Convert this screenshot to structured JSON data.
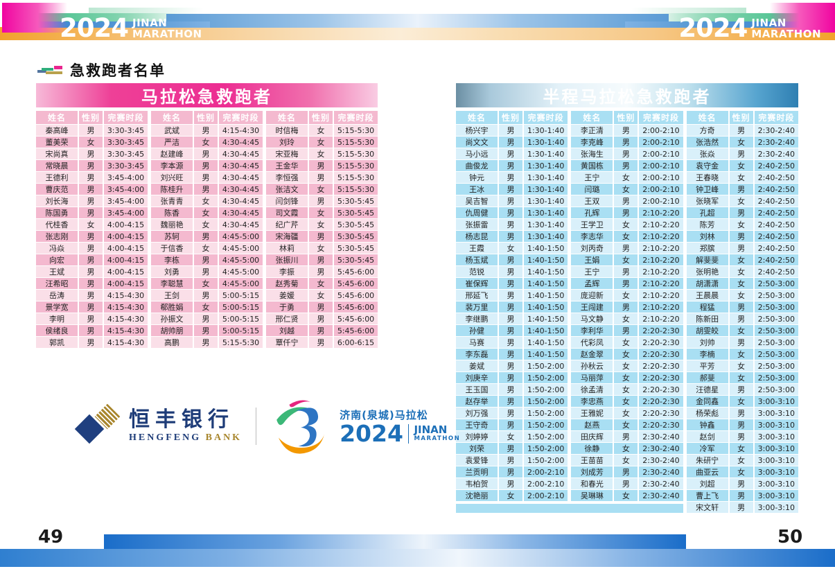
{
  "banner": {
    "year": "2024",
    "title_line1": "JINAN",
    "title_line2": "MARATHON"
  },
  "section": {
    "title": "急救跑者名单"
  },
  "columns": {
    "name": "姓名",
    "gender": "性别",
    "time": "完赛时段"
  },
  "left_page": {
    "page_number": "49",
    "table_title": "马拉松急救跑者",
    "groups": [
      [
        [
          "秦高峰",
          "男",
          "3:30-3:45"
        ],
        [
          "董美荣",
          "女",
          "3:30-3:45"
        ],
        [
          "宋尚真",
          "男",
          "3:30-3:45"
        ],
        [
          "常晓晨",
          "男",
          "3:30-3:45"
        ],
        [
          "王德利",
          "男",
          "3:45-4:00"
        ],
        [
          "曹庆范",
          "男",
          "3:45-4:00"
        ],
        [
          "刘长海",
          "男",
          "3:45-4:00"
        ],
        [
          "陈国勇",
          "男",
          "3:45-4:00"
        ],
        [
          "代桂香",
          "女",
          "4:00-4:15"
        ],
        [
          "张志刚",
          "男",
          "4:00-4:15"
        ],
        [
          "冯焱",
          "男",
          "4:00-4:15"
        ],
        [
          "向宏",
          "男",
          "4:00-4:15"
        ],
        [
          "王斌",
          "男",
          "4:00-4:15"
        ],
        [
          "汪希昭",
          "男",
          "4:00-4:15"
        ],
        [
          "岳涛",
          "男",
          "4:15-4:30"
        ],
        [
          "景学宽",
          "男",
          "4:15-4:30"
        ],
        [
          "李明",
          "男",
          "4:15-4:30"
        ],
        [
          "侯绪良",
          "男",
          "4:15-4:30"
        ],
        [
          "郭凯",
          "男",
          "4:15-4:30"
        ]
      ],
      [
        [
          "武斌",
          "男",
          "4:15-4:30"
        ],
        [
          "严洁",
          "女",
          "4:30-4:45"
        ],
        [
          "赵建峰",
          "男",
          "4:30-4:45"
        ],
        [
          "李本源",
          "男",
          "4:30-4:45"
        ],
        [
          "刘兴旺",
          "男",
          "4:30-4:45"
        ],
        [
          "陈桂升",
          "男",
          "4:30-4:45"
        ],
        [
          "张青青",
          "女",
          "4:30-4:45"
        ],
        [
          "陈香",
          "女",
          "4:30-4:45"
        ],
        [
          "魏丽艳",
          "女",
          "4:30-4:45"
        ],
        [
          "苏轲",
          "男",
          "4:45-5:00"
        ],
        [
          "于信香",
          "女",
          "4:45-5:00"
        ],
        [
          "李栋",
          "男",
          "4:45-5:00"
        ],
        [
          "刘勇",
          "男",
          "4:45-5:00"
        ],
        [
          "李聪慧",
          "女",
          "4:45-5:00"
        ],
        [
          "王剑",
          "男",
          "5:00-5:15"
        ],
        [
          "郗胜娟",
          "女",
          "5:00-5:15"
        ],
        [
          "孙振文",
          "男",
          "5:00-5:15"
        ],
        [
          "胡帅朋",
          "男",
          "5:00-5:15"
        ],
        [
          "高鹏",
          "男",
          "5:15-5:30"
        ]
      ],
      [
        [
          "时信梅",
          "女",
          "5:15-5:30"
        ],
        [
          "刘玲",
          "女",
          "5:15-5:30"
        ],
        [
          "宋亚梅",
          "女",
          "5:15-5:30"
        ],
        [
          "王金华",
          "男",
          "5:15-5:30"
        ],
        [
          "李恒强",
          "男",
          "5:15-5:30"
        ],
        [
          "张洁文",
          "女",
          "5:15-5:30"
        ],
        [
          "闫剑锋",
          "男",
          "5:30-5:45"
        ],
        [
          "司文霞",
          "女",
          "5:30-5:45"
        ],
        [
          "纪广芹",
          "女",
          "5:30-5:45"
        ],
        [
          "宋海疆",
          "男",
          "5:30-5:45"
        ],
        [
          "林莉",
          "女",
          "5:30-5:45"
        ],
        [
          "张振川",
          "男",
          "5:30-5:45"
        ],
        [
          "李振",
          "男",
          "5:45-6:00"
        ],
        [
          "赵秀菊",
          "女",
          "5:45-6:00"
        ],
        [
          "姜媛",
          "女",
          "5:45-6:00"
        ],
        [
          "于勇",
          "男",
          "5:45-6:00"
        ],
        [
          "邢仁贤",
          "男",
          "5:45-6:00"
        ],
        [
          "刘越",
          "男",
          "5:45-6:00"
        ],
        [
          "覃仟宁",
          "男",
          "6:00-6:15"
        ]
      ]
    ]
  },
  "right_page": {
    "page_number": "50",
    "table_title": "半程马拉松急救跑者",
    "groups": [
      [
        [
          "杨兴宇",
          "男",
          "1:30-1:40"
        ],
        [
          "尚文文",
          "男",
          "1:30-1:40"
        ],
        [
          "马小远",
          "男",
          "1:30-1:40"
        ],
        [
          "曲俊龙",
          "男",
          "1:30-1:40"
        ],
        [
          "钟元",
          "男",
          "1:30-1:40"
        ],
        [
          "王冰",
          "男",
          "1:30-1:40"
        ],
        [
          "吴吉智",
          "男",
          "1:30-1:40"
        ],
        [
          "仇周健",
          "男",
          "1:30-1:40"
        ],
        [
          "张振雷",
          "男",
          "1:30-1:40"
        ],
        [
          "杨志昆",
          "男",
          "1:30-1:40"
        ],
        [
          "王霞",
          "女",
          "1:40-1:50"
        ],
        [
          "杨玉斌",
          "男",
          "1:40-1:50"
        ],
        [
          "范锐",
          "男",
          "1:40-1:50"
        ],
        [
          "崔保辉",
          "男",
          "1:40-1:50"
        ],
        [
          "邢延飞",
          "男",
          "1:40-1:50"
        ],
        [
          "裴万里",
          "男",
          "1:40-1:50"
        ],
        [
          "李继鹏",
          "男",
          "1:40-1:50"
        ],
        [
          "孙健",
          "男",
          "1:40-1:50"
        ],
        [
          "马赛",
          "男",
          "1:40-1:50"
        ],
        [
          "李东磊",
          "男",
          "1:40-1:50"
        ],
        [
          "姜斌",
          "男",
          "1:50-2:00"
        ],
        [
          "刘庚辛",
          "男",
          "1:50-2:00"
        ],
        [
          "王玉国",
          "男",
          "1:50-2:00"
        ],
        [
          "赵存举",
          "男",
          "1:50-2:00"
        ],
        [
          "刘万强",
          "男",
          "1:50-2:00"
        ],
        [
          "王守奇",
          "男",
          "1:50-2:00"
        ],
        [
          "刘婷婷",
          "女",
          "1:50-2:00"
        ],
        [
          "刘荣",
          "男",
          "1:50-2:00"
        ],
        [
          "袁爱锋",
          "男",
          "1:50-2:00"
        ],
        [
          "兰贡明",
          "男",
          "2:00-2:10"
        ],
        [
          "韦柏贺",
          "男",
          "2:00-2:10"
        ],
        [
          "沈艳丽",
          "女",
          "2:00-2:10"
        ]
      ],
      [
        [
          "李正清",
          "男",
          "2:00-2:10"
        ],
        [
          "李克峰",
          "男",
          "2:00-2:10"
        ],
        [
          "张海生",
          "男",
          "2:00-2:10"
        ],
        [
          "黄国栋",
          "男",
          "2:00-2:10"
        ],
        [
          "王宁",
          "女",
          "2:00-2:10"
        ],
        [
          "闫璐",
          "女",
          "2:00-2:10"
        ],
        [
          "王双",
          "男",
          "2:00-2:10"
        ],
        [
          "孔辉",
          "男",
          "2:10-2:20"
        ],
        [
          "王学卫",
          "女",
          "2:10-2:20"
        ],
        [
          "李志华",
          "女",
          "2:10-2:20"
        ],
        [
          "刘丙奇",
          "男",
          "2:10-2:20"
        ],
        [
          "王娟",
          "女",
          "2:10-2:20"
        ],
        [
          "王宁",
          "男",
          "2:10-2:20"
        ],
        [
          "孟辉",
          "男",
          "2:10-2:20"
        ],
        [
          "庞迎新",
          "女",
          "2:10-2:20"
        ],
        [
          "王闯建",
          "男",
          "2:10-2:20"
        ],
        [
          "马文静",
          "女",
          "2:10-2:20"
        ],
        [
          "李利华",
          "男",
          "2:20-2:30"
        ],
        [
          "代彩凤",
          "女",
          "2:20-2:30"
        ],
        [
          "赵金翠",
          "女",
          "2:20-2:30"
        ],
        [
          "孙秋云",
          "女",
          "2:20-2:30"
        ],
        [
          "马丽萍",
          "女",
          "2:20-2:30"
        ],
        [
          "徐孟清",
          "女",
          "2:20-2:30"
        ],
        [
          "李忠燕",
          "女",
          "2:20-2:30"
        ],
        [
          "王雅妮",
          "女",
          "2:20-2:30"
        ],
        [
          "赵燕",
          "女",
          "2:20-2:30"
        ],
        [
          "田庆辉",
          "男",
          "2:30-2:40"
        ],
        [
          "徐静",
          "女",
          "2:30-2:40"
        ],
        [
          "王苗苗",
          "女",
          "2:30-2:40"
        ],
        [
          "刘成芳",
          "男",
          "2:30-2:40"
        ],
        [
          "和春光",
          "男",
          "2:30-2:40"
        ],
        [
          "吴琳琳",
          "女",
          "2:30-2:40"
        ]
      ],
      [
        [
          "方奇",
          "男",
          "2:30-2:40"
        ],
        [
          "张浩然",
          "女",
          "2:30-2:40"
        ],
        [
          "张焱",
          "男",
          "2:30-2:40"
        ],
        [
          "袁守金",
          "女",
          "2:40-2:50"
        ],
        [
          "王春晓",
          "女",
          "2:40-2:50"
        ],
        [
          "钟卫峰",
          "男",
          "2:40-2:50"
        ],
        [
          "张晓军",
          "女",
          "2:40-2:50"
        ],
        [
          "孔超",
          "男",
          "2:40-2:50"
        ],
        [
          "陈芳",
          "女",
          "2:40-2:50"
        ],
        [
          "刘林",
          "男",
          "2:40-2:50"
        ],
        [
          "郑膑",
          "男",
          "2:40-2:50"
        ],
        [
          "解斐斐",
          "女",
          "2:40-2:50"
        ],
        [
          "张明艳",
          "女",
          "2:40-2:50"
        ],
        [
          "胡潇潇",
          "女",
          "2:50-3:00"
        ],
        [
          "王晨晨",
          "女",
          "2:50-3:00"
        ],
        [
          "程猛",
          "男",
          "2:50-3:00"
        ],
        [
          "陈新田",
          "男",
          "2:50-3:00"
        ],
        [
          "胡雯皎",
          "女",
          "2:50-3:00"
        ],
        [
          "刘帅",
          "男",
          "2:50-3:00"
        ],
        [
          "李楠",
          "女",
          "2:50-3:00"
        ],
        [
          "平芳",
          "女",
          "2:50-3:00"
        ],
        [
          "郝斐",
          "女",
          "2:50-3:00"
        ],
        [
          "汪德星",
          "男",
          "2:50-3:00"
        ],
        [
          "金同鑫",
          "女",
          "3:00-3:10"
        ],
        [
          "杨荣彪",
          "男",
          "3:00-3:10"
        ],
        [
          "钟鑫",
          "男",
          "3:00-3:10"
        ],
        [
          "赵剑",
          "男",
          "3:00-3:10"
        ],
        [
          "冷军",
          "女",
          "3:00-3:10"
        ],
        [
          "朱研宁",
          "女",
          "3:00-3:10"
        ],
        [
          "曲亚云",
          "女",
          "3:00-3:10"
        ],
        [
          "刘超",
          "男",
          "3:00-3:10"
        ],
        [
          "曹上飞",
          "男",
          "3:00-3:10"
        ],
        [
          "宋文轩",
          "男",
          "3:00-3:10"
        ]
      ]
    ]
  },
  "sponsors": {
    "bank_cn": "恒丰银行",
    "bank_en": "HENGFENG",
    "bank_en2": "BANK",
    "marathon_cn": "济南(泉城)马拉松",
    "marathon_year": "2024",
    "marathon_en1": "JINAN",
    "marathon_en2": "MARATHON"
  },
  "colors": {
    "pink_accent": "#EC2D92",
    "pink_header": "#EE549E",
    "pink_row_light": "#FADFE8",
    "pink_row_dark": "#F4B9CF",
    "blue_accent": "#1E86C3",
    "blue_row_light": "#D9F0FA",
    "blue_row_dark": "#A9DFF3",
    "footer_blue": "#1A6DC9",
    "banner_magenta": "#F004A0",
    "banner_green": "#2CB77D",
    "banner_blue": "#5B9BD5",
    "banner_orange": "#F2A22C",
    "bank_navy": "#1E3C78",
    "bank_gold": "#A8862D",
    "jnm_blue": "#1C6FB8"
  }
}
